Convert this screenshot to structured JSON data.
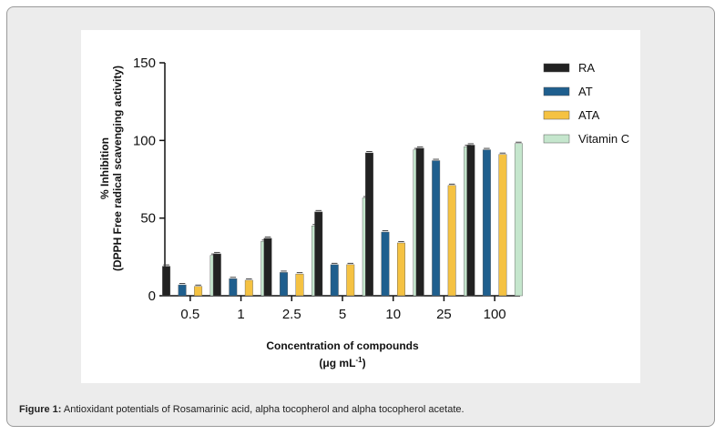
{
  "chart_data": {
    "type": "bar",
    "categories": [
      "0.5",
      "1",
      "2.5",
      "5",
      "10",
      "25",
      "100"
    ],
    "series": [
      {
        "name": "RA",
        "color": "#222222",
        "values": [
          19,
          27,
          37,
          54,
          92,
          95,
          97
        ]
      },
      {
        "name": "AT",
        "color": "#1f5f8e",
        "values": [
          7,
          11,
          15,
          20,
          41,
          87,
          94
        ]
      },
      {
        "name": "ATA",
        "color": "#f5c242",
        "values": [
          6,
          10,
          14,
          20,
          34,
          71,
          91
        ]
      },
      {
        "name": "Vitamin C",
        "color": "#c5e6cd",
        "values": [
          26,
          35,
          45,
          63,
          94,
          96,
          98
        ]
      }
    ],
    "xlabel_line1": "Concentration of compounds",
    "xlabel_line2_prefix": "(μg mL",
    "xlabel_sup": "-1",
    "xlabel_line2_suffix": ")",
    "ylabel_line1": "% Inhibition",
    "ylabel_line2": "(DPPH Free radical scavenging activity)",
    "ylim": [
      0,
      150
    ],
    "yticks": [
      "0",
      "50",
      "100",
      "150"
    ],
    "grid": false,
    "legend_position": "top-right"
  },
  "caption": {
    "label": "Figure 1:",
    "text": " Antioxidant potentials of Rosamarinic acid, alpha tocopherol and alpha tocopherol acetate."
  }
}
